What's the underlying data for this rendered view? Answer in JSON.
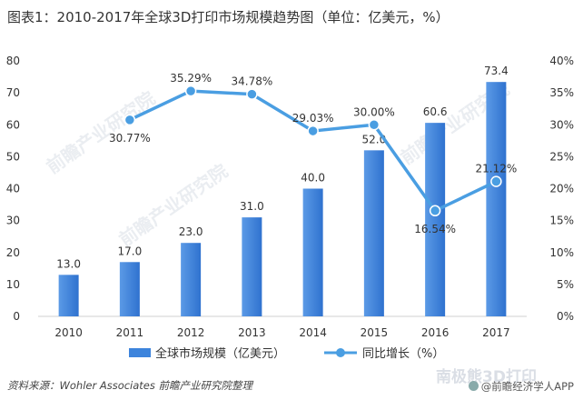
{
  "title": "图表1：2010-2017年全球3D打印市场规模趋势图（单位：亿美元，%）",
  "source": "资料来源：Wohler Associates 前瞻产业研究院整理",
  "credit": "@前瞻经济学人APP",
  "watermarks": [
    "前瞻产业研究院",
    "南极熊3D打印"
  ],
  "chart_data": {
    "type": "bar",
    "categories": [
      "2010",
      "2011",
      "2012",
      "2013",
      "2014",
      "2015",
      "2016",
      "2017"
    ],
    "series": [
      {
        "name": "全球市场规模（亿美元）",
        "type": "bar",
        "axis": "left",
        "values": [
          13.0,
          17.0,
          23.0,
          31.0,
          40.0,
          52.0,
          60.6,
          73.4
        ],
        "labels": [
          "13.0",
          "17.0",
          "23.0",
          "31.0",
          "40.0",
          "52.0",
          "60.6",
          "73.4"
        ],
        "color": "#3d84dc"
      },
      {
        "name": "同比增长（%）",
        "type": "line",
        "axis": "right",
        "values": [
          null,
          30.77,
          35.29,
          34.78,
          29.03,
          30.0,
          16.54,
          21.12
        ],
        "labels": [
          "",
          "30.77%",
          "35.29%",
          "34.78%",
          "29.03%",
          "30.00%",
          "16.54%",
          "21.12%"
        ],
        "color": "#4a9ee2"
      }
    ],
    "y_left": {
      "min": 0,
      "max": 80,
      "ticks": [
        "0",
        "10",
        "20",
        "30",
        "40",
        "50",
        "60",
        "70",
        "80"
      ]
    },
    "y_right": {
      "min": 0,
      "max": 40,
      "ticks": [
        "0%",
        "5%",
        "10%",
        "15%",
        "20%",
        "25%",
        "30%",
        "35%",
        "40%"
      ]
    },
    "grid": false,
    "legend_position": "bottom"
  }
}
